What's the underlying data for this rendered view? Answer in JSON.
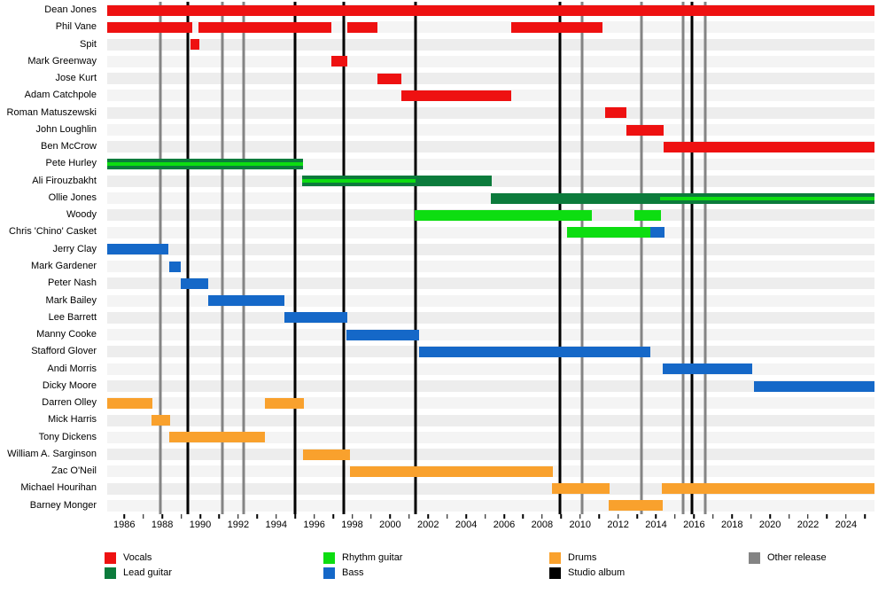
{
  "chart_data": {
    "type": "timeline",
    "description": "Band members timeline with instrument roles and release markers",
    "x_axis": {
      "start": 1985.1,
      "end": 2025.5,
      "label_years": [
        1986,
        1988,
        1990,
        1992,
        1994,
        1996,
        1998,
        2000,
        2002,
        2004,
        2006,
        2008,
        2010,
        2012,
        2014,
        2016,
        2018,
        2020,
        2022,
        2024
      ],
      "tick_first": 1986,
      "tick_last": 2025,
      "grid": "off",
      "legend_position": "bottom"
    },
    "colors": {
      "vocals": "#ee1111",
      "lead_guitar": "#0c7b3c",
      "rhythm_guitar": "#0ddd11",
      "bass": "#1568c8",
      "drums": "#f9a12d",
      "studio_album": "#000000",
      "other_release": "#848484"
    },
    "legend": [
      {
        "key": "vocals",
        "label": "Vocals",
        "col": 0,
        "slot": 0
      },
      {
        "key": "lead_guitar",
        "label": "Lead guitar",
        "col": 0,
        "slot": 1
      },
      {
        "key": "rhythm_guitar",
        "label": "Rhythm guitar",
        "col": 1,
        "slot": 0
      },
      {
        "key": "bass",
        "label": "Bass",
        "col": 1,
        "slot": 1
      },
      {
        "key": "drums",
        "label": "Drums",
        "col": 2,
        "slot": 0
      },
      {
        "key": "studio_album",
        "label": "Studio album",
        "col": 2,
        "slot": 1
      },
      {
        "key": "other_release",
        "label": "Other release",
        "col": 3,
        "slot": 0
      }
    ],
    "events": {
      "studio_album": [
        1989.35,
        1995.0,
        1997.57,
        2001.35,
        2008.95,
        2015.87
      ],
      "other_release": [
        1987.9,
        1991.15,
        1992.3,
        2010.1,
        2013.25,
        2015.42,
        2016.57
      ]
    },
    "rows": [
      {
        "name": "Dean Jones",
        "bars": [
          {
            "role": "vocals",
            "from": 1985.1,
            "to": 2025.5
          }
        ]
      },
      {
        "name": "Phil Vane",
        "bars": [
          {
            "role": "vocals",
            "from": 1985.1,
            "to": 1989.6
          },
          {
            "role": "vocals",
            "from": 1989.9,
            "to": 1996.9
          },
          {
            "role": "vocals",
            "from": 1997.75,
            "to": 1999.35
          },
          {
            "role": "vocals",
            "from": 2006.35,
            "to": 2011.2
          }
        ]
      },
      {
        "name": "Spit",
        "bars": [
          {
            "role": "vocals",
            "from": 1989.5,
            "to": 1989.95
          }
        ]
      },
      {
        "name": "Mark Greenway",
        "bars": [
          {
            "role": "vocals",
            "from": 1996.9,
            "to": 1997.75
          }
        ]
      },
      {
        "name": "Jose Kurt",
        "bars": [
          {
            "role": "vocals",
            "from": 1999.35,
            "to": 2000.6
          }
        ]
      },
      {
        "name": "Adam Catchpole",
        "bars": [
          {
            "role": "vocals",
            "from": 2000.6,
            "to": 2006.35
          }
        ]
      },
      {
        "name": "Roman Matuszewski",
        "bars": [
          {
            "role": "vocals",
            "from": 2011.3,
            "to": 2012.45
          }
        ]
      },
      {
        "name": "John Loughlin",
        "bars": [
          {
            "role": "vocals",
            "from": 2012.45,
            "to": 2014.4
          }
        ]
      },
      {
        "name": "Ben McCrow",
        "bars": [
          {
            "role": "vocals",
            "from": 2014.4,
            "to": 2025.5
          }
        ]
      },
      {
        "name": "Pete Hurley",
        "bars": [
          {
            "role": "lead_guitar",
            "from": 1985.1,
            "to": 1995.4,
            "stripe": {
              "role": "rhythm_guitar",
              "from": 1985.1,
              "to": 1995.4
            }
          }
        ]
      },
      {
        "name": "Ali Firouzbakht",
        "bars": [
          {
            "role": "lead_guitar",
            "from": 1995.35,
            "to": 2005.35,
            "stripe": {
              "role": "rhythm_guitar",
              "from": 1995.35,
              "to": 2001.35
            }
          }
        ]
      },
      {
        "name": "Ollie Jones",
        "bars": [
          {
            "role": "lead_guitar",
            "from": 2005.3,
            "to": 2025.5,
            "stripe": {
              "role": "rhythm_guitar",
              "from": 2014.2,
              "to": 2025.5
            }
          }
        ]
      },
      {
        "name": "Woody",
        "bars": [
          {
            "role": "rhythm_guitar",
            "from": 2001.3,
            "to": 2010.6
          },
          {
            "role": "rhythm_guitar",
            "from": 2012.85,
            "to": 2014.25
          }
        ]
      },
      {
        "name": "Chris 'Chino' Casket",
        "bars": [
          {
            "role": "rhythm_guitar",
            "from": 2009.3,
            "to": 2013.7
          },
          {
            "role": "bass",
            "from": 2013.7,
            "to": 2014.45
          }
        ]
      },
      {
        "name": "Jerry Clay",
        "bars": [
          {
            "role": "bass",
            "from": 1985.1,
            "to": 1988.3
          }
        ]
      },
      {
        "name": "Mark Gardener",
        "bars": [
          {
            "role": "bass",
            "from": 1988.35,
            "to": 1988.95
          }
        ]
      },
      {
        "name": "Peter Nash",
        "bars": [
          {
            "role": "bass",
            "from": 1988.95,
            "to": 1990.4
          }
        ]
      },
      {
        "name": "Mark Bailey",
        "bars": [
          {
            "role": "bass",
            "from": 1990.4,
            "to": 1994.45
          }
        ]
      },
      {
        "name": "Lee Barrett",
        "bars": [
          {
            "role": "bass",
            "from": 1994.45,
            "to": 1997.75
          }
        ]
      },
      {
        "name": "Manny Cooke",
        "bars": [
          {
            "role": "bass",
            "from": 1997.7,
            "to": 2001.5
          }
        ]
      },
      {
        "name": "Stafford Glover",
        "bars": [
          {
            "role": "bass",
            "from": 2001.5,
            "to": 2013.7
          }
        ]
      },
      {
        "name": "Andi Morris",
        "bars": [
          {
            "role": "bass",
            "from": 2014.35,
            "to": 2019.05
          }
        ]
      },
      {
        "name": "Dicky Moore",
        "bars": [
          {
            "role": "bass",
            "from": 2019.15,
            "to": 2025.5
          }
        ]
      },
      {
        "name": "Darren Olley",
        "bars": [
          {
            "role": "drums",
            "from": 1985.1,
            "to": 1987.5
          },
          {
            "role": "drums",
            "from": 1993.4,
            "to": 1995.45
          }
        ]
      },
      {
        "name": "Mick Harris",
        "bars": [
          {
            "role": "drums",
            "from": 1987.45,
            "to": 1988.4
          }
        ]
      },
      {
        "name": "Tony Dickens",
        "bars": [
          {
            "role": "drums",
            "from": 1988.35,
            "to": 1993.4
          }
        ]
      },
      {
        "name": "William A. Sarginson",
        "bars": [
          {
            "role": "drums",
            "from": 1995.4,
            "to": 1997.9
          }
        ]
      },
      {
        "name": "Zac O'Neil",
        "bars": [
          {
            "role": "drums",
            "from": 1997.9,
            "to": 2008.55
          }
        ]
      },
      {
        "name": "Michael Hourihan",
        "bars": [
          {
            "role": "drums",
            "from": 2008.5,
            "to": 2011.55
          },
          {
            "role": "drums",
            "from": 2014.3,
            "to": 2025.5
          }
        ]
      },
      {
        "name": "Barney Monger",
        "bars": [
          {
            "role": "drums",
            "from": 2011.5,
            "to": 2014.35
          }
        ]
      }
    ]
  }
}
